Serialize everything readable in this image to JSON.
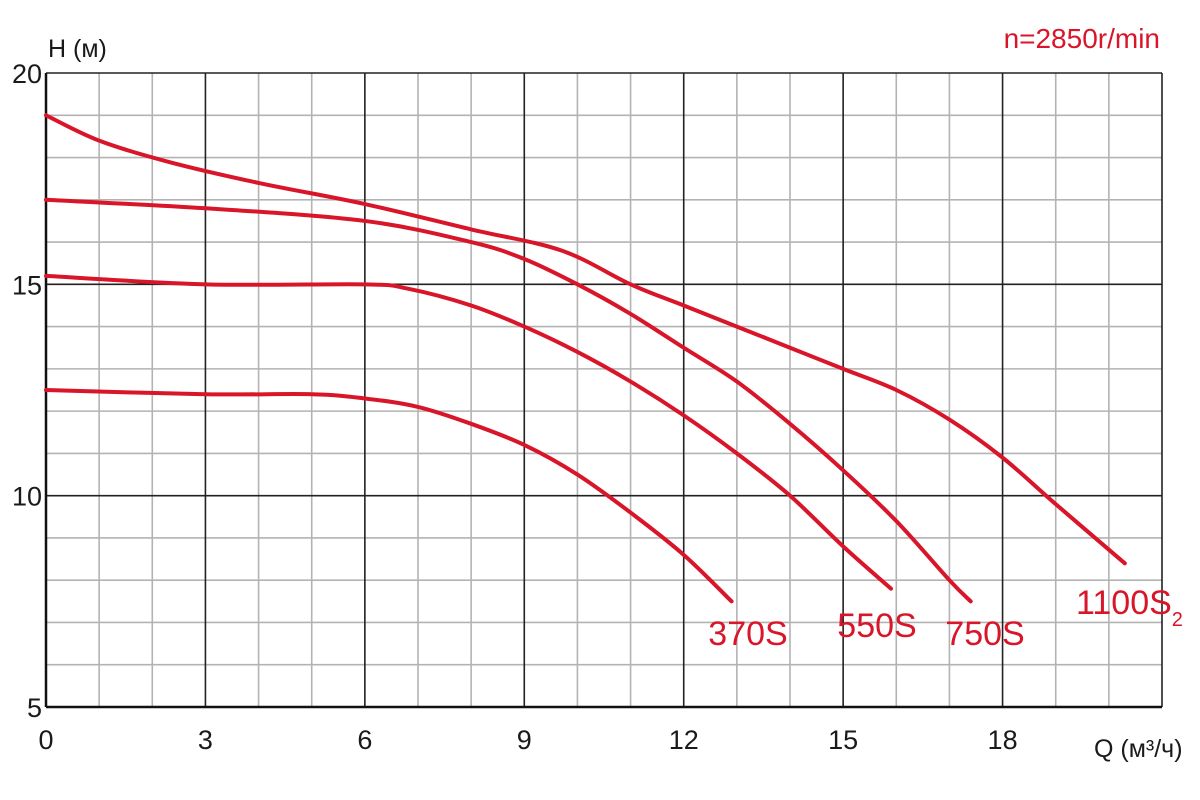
{
  "colors": {
    "curve": "#d9152a",
    "grid_minor": "#b3b3b3",
    "grid_major": "#222222",
    "axis": "#111111"
  },
  "chart_data": {
    "type": "line",
    "title": "",
    "annotation": "n=2850r/min",
    "xlabel": "Q (м³/ч)",
    "ylabel": "H (м)",
    "xlim": [
      0,
      21
    ],
    "ylim": [
      5,
      20
    ],
    "x_ticks": [
      0,
      3,
      6,
      9,
      12,
      15,
      18
    ],
    "y_ticks": [
      5,
      10,
      15,
      20
    ],
    "grid": true,
    "series": [
      {
        "name": "370S",
        "label_main": "370S",
        "label_sub": "",
        "x": [
          0,
          3,
          5,
          6,
          7,
          8,
          9,
          10,
          11,
          12,
          12.9
        ],
        "y": [
          12.5,
          12.4,
          12.4,
          12.3,
          12.1,
          11.7,
          11.2,
          10.5,
          9.6,
          8.6,
          7.5
        ]
      },
      {
        "name": "550S",
        "label_main": "550S",
        "label_sub": "",
        "x": [
          0,
          3,
          6,
          6.8,
          8,
          9,
          10,
          11,
          12,
          13,
          14,
          15,
          15.9
        ],
        "y": [
          15.2,
          15.0,
          15.0,
          14.9,
          14.5,
          14.0,
          13.4,
          12.7,
          11.9,
          11.0,
          10.0,
          8.8,
          7.8
        ]
      },
      {
        "name": "750S",
        "label_main": "750S",
        "label_sub": "",
        "x": [
          0,
          3,
          6,
          8,
          9,
          10,
          11,
          12,
          13,
          14,
          15,
          16,
          17,
          17.4
        ],
        "y": [
          17.0,
          16.8,
          16.5,
          16.0,
          15.6,
          15.0,
          14.3,
          13.5,
          12.7,
          11.7,
          10.6,
          9.4,
          8.0,
          7.5
        ]
      },
      {
        "name": "1100S2",
        "label_main": "1100S",
        "label_sub": "2",
        "x": [
          0,
          1,
          2.3,
          4,
          6,
          8,
          9.7,
          11,
          12,
          13,
          14,
          15,
          16,
          17,
          18,
          19,
          20.3
        ],
        "y": [
          19.0,
          18.4,
          17.9,
          17.4,
          16.9,
          16.3,
          15.8,
          15.0,
          14.5,
          14.0,
          13.5,
          13.0,
          12.5,
          11.8,
          10.9,
          9.8,
          8.4
        ]
      }
    ]
  }
}
